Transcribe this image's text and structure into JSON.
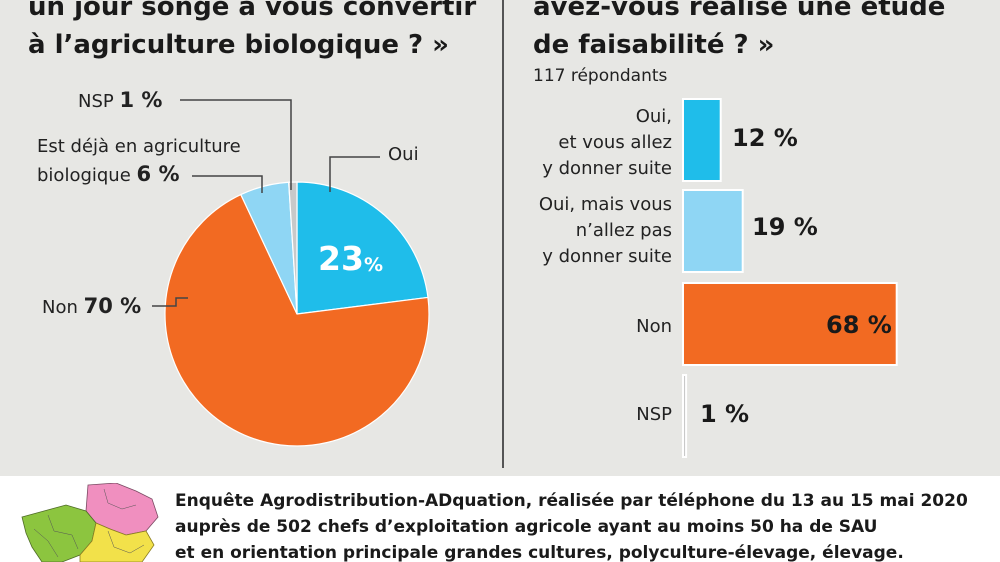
{
  "left_panel": {
    "title_line1": "un jour songé à vous convertir",
    "title_line2": "à l’agriculture biologique ? »"
  },
  "right_panel": {
    "title_line1": "avez-vous réalisé une étude",
    "title_line2": "de faisabilité ? »",
    "respondents": "117 répondants"
  },
  "footer": {
    "line1": "Enquête Agrodistribution-ADquation, réalisée par téléphone du 13 au 15 mai 2020",
    "line2": "auprès de 502 chefs d’exploitation agricole ayant au moins 50 ha de SAU",
    "line3": "et en orientation principale grandes cultures, polyculture-élevage, élevage."
  },
  "chart_data": [
    {
      "type": "pie",
      "slices": [
        {
          "key": "oui",
          "label": "Oui",
          "value": 23,
          "value_text": "23",
          "unit": "%",
          "color": "#1fbdea"
        },
        {
          "key": "non",
          "label": "Non",
          "value": 70,
          "value_text": "70 %",
          "color": "#f26a22"
        },
        {
          "key": "deja",
          "label_line1": "Est déjà en agriculture",
          "label_line2": "biologique",
          "value": 6,
          "value_text": "6 %",
          "color": "#8fd6f4"
        },
        {
          "key": "nsp",
          "label": "NSP",
          "value": 1,
          "value_text": "1 %",
          "color": "#c9c9c9"
        }
      ]
    },
    {
      "type": "bar",
      "orientation": "horizontal",
      "xlim": [
        0,
        70
      ],
      "bars": [
        {
          "key": "oui_suite",
          "label_lines": [
            "Oui,",
            "et vous allez",
            "y donner suite"
          ],
          "value": 12,
          "value_text": "12 %",
          "color": "#1fbdea"
        },
        {
          "key": "oui_pas",
          "label_lines": [
            "Oui, mais vous",
            "n’allez pas",
            "y donner suite"
          ],
          "value": 19,
          "value_text": "19 %",
          "color": "#8fd6f4"
        },
        {
          "key": "non",
          "label_lines": [
            "Non"
          ],
          "value": 68,
          "value_text": "68 %",
          "color": "#f26a22"
        },
        {
          "key": "nsp",
          "label_lines": [
            "NSP"
          ],
          "value": 1,
          "value_text": "1 %",
          "color": "#c9c9c9"
        }
      ]
    }
  ],
  "map": {
    "colors": [
      "#f08fbf",
      "#f2e14a",
      "#8cc53f"
    ]
  }
}
